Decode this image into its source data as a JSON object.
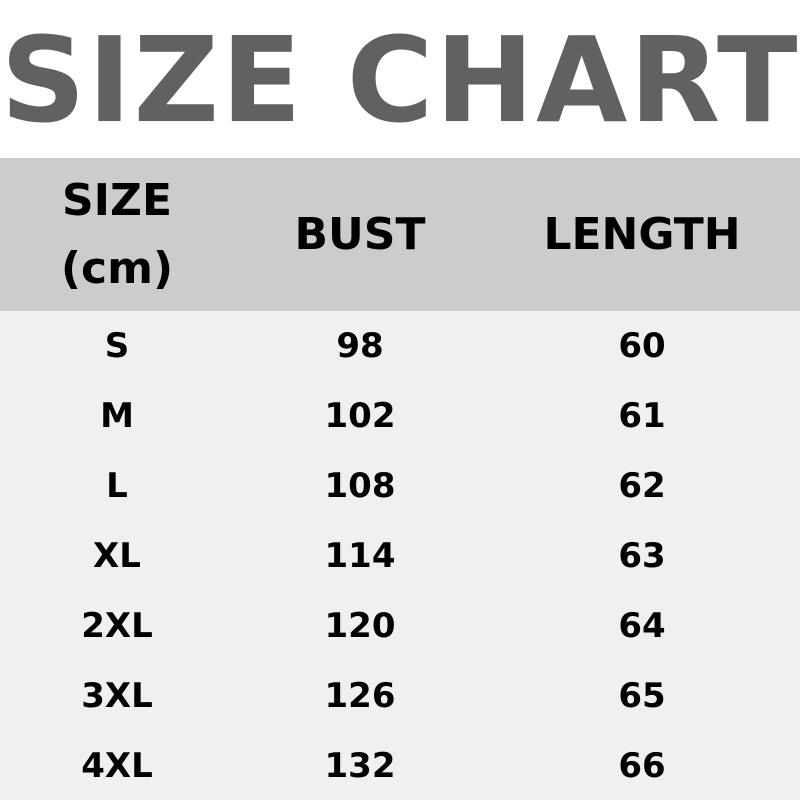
{
  "title": "SIZE CHART",
  "headers": {
    "size_line1": "SIZE",
    "size_line2": "(cm)",
    "bust": "BUST",
    "length": "LENGTH"
  },
  "rows": [
    {
      "size": "S",
      "bust": "98",
      "length": "60"
    },
    {
      "size": "M",
      "bust": "102",
      "length": "61"
    },
    {
      "size": "L",
      "bust": "108",
      "length": "62"
    },
    {
      "size": "XL",
      "bust": "114",
      "length": "63"
    },
    {
      "size": "2XL",
      "bust": "120",
      "length": "64"
    },
    {
      "size": "3XL",
      "bust": "126",
      "length": "65"
    },
    {
      "size": "4XL",
      "bust": "132",
      "length": "66"
    }
  ]
}
